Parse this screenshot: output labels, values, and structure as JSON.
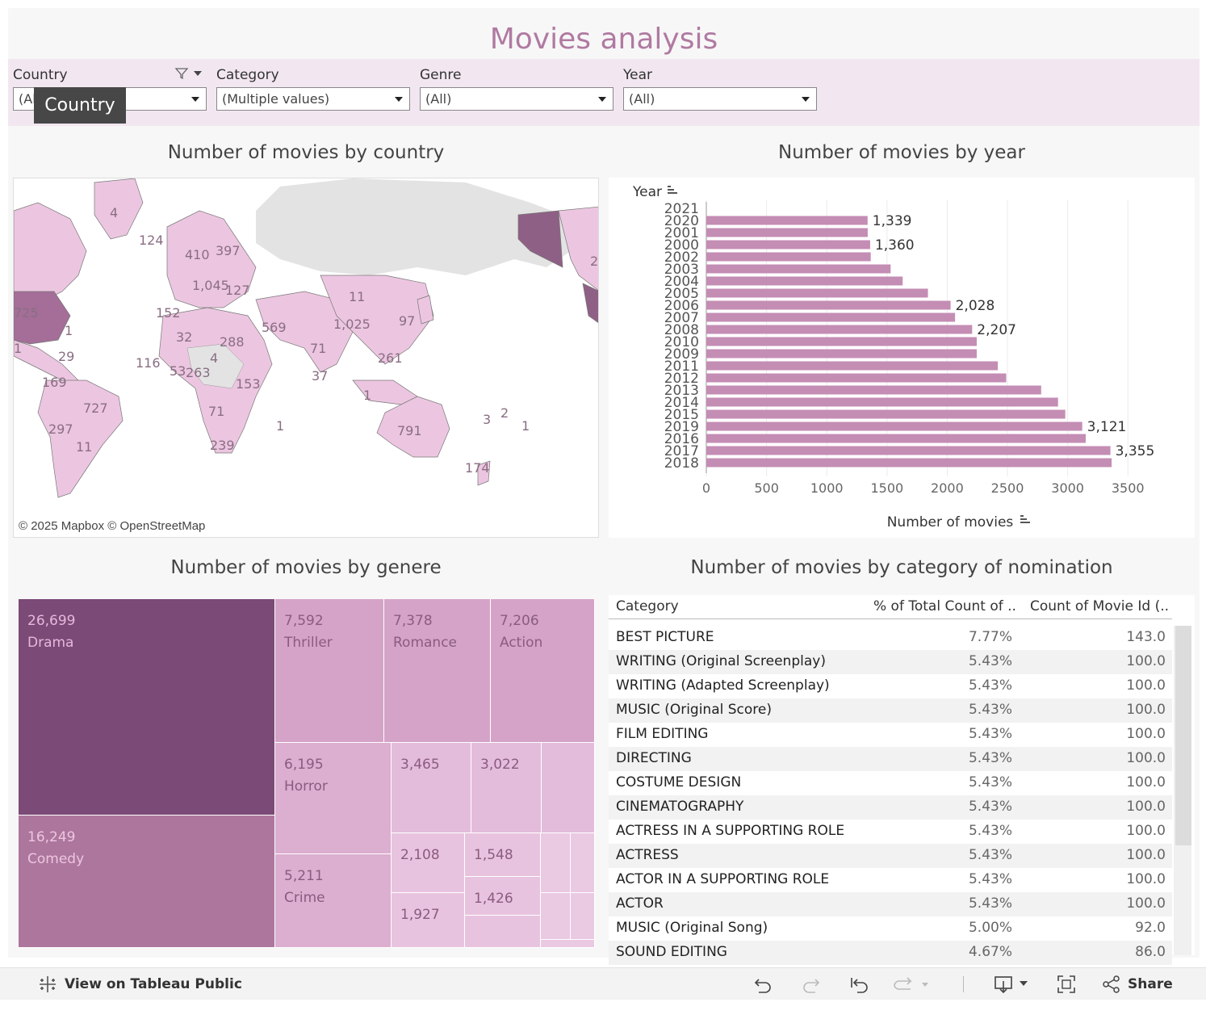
{
  "title": "Movies analysis",
  "filters": [
    {
      "label": "Country",
      "value": "(All"
    },
    {
      "label": "Category",
      "value": "(Multiple values)"
    },
    {
      "label": "Genre",
      "value": "(All)"
    },
    {
      "label": "Year",
      "value": "(All)"
    }
  ],
  "tooltip": "Country",
  "map": {
    "title": "Number of movies by country",
    "attribution": "© 2025 Mapbox  © OpenStreetMap",
    "labels": [
      "4",
      "124",
      "397",
      "410",
      "2",
      "725",
      "1",
      "1",
      "29",
      "152",
      "32",
      "288",
      "1,025",
      "11",
      "569",
      "1,045",
      "127",
      "97",
      "263",
      "261",
      "71",
      "37",
      "1",
      "116",
      "53",
      "4",
      "169",
      "727",
      "297",
      "11",
      "239",
      "71",
      "153",
      "791",
      "3",
      "2",
      "1",
      "174",
      "1"
    ]
  },
  "barchart": {
    "title": "Number of movies by year",
    "y_axis_label": "Year",
    "x_axis_label": "Number of movies",
    "accent": "#c48db4"
  },
  "chart_data": {
    "type": "bar",
    "orientation": "horizontal",
    "categories": [
      "2021",
      "2020",
      "2001",
      "2000",
      "2002",
      "2003",
      "2004",
      "2005",
      "2006",
      "2007",
      "2008",
      "2010",
      "2009",
      "2011",
      "2012",
      "2013",
      "2014",
      "2015",
      "2019",
      "2016",
      "2017",
      "2018"
    ],
    "values": [
      0,
      1339,
      1340,
      1360,
      1365,
      1530,
      1630,
      1840,
      2028,
      2065,
      2207,
      2245,
      2245,
      2420,
      2490,
      2780,
      2920,
      2980,
      3121,
      3150,
      3355,
      3365
    ],
    "data_labels": {
      "2020": "1,339",
      "2000": "1,360",
      "2006": "2,028",
      "2008": "2,207",
      "2019": "3,121",
      "2017": "3,355"
    },
    "xticks": [
      "0",
      "500",
      "1000",
      "1500",
      "2000",
      "2500",
      "3000",
      "3500"
    ],
    "xlim": [
      0,
      3800
    ],
    "xlabel": "Number of movies",
    "ylabel": "Year"
  },
  "treemap": {
    "title": "Number of movies by genere",
    "cells": [
      {
        "value": "26,699",
        "label": "Drama",
        "color": "#7b4a77",
        "text": "#e6b8dc"
      },
      {
        "value": "16,249",
        "label": "Comedy",
        "color": "#ad769d",
        "text": "#ecc6e0"
      },
      {
        "value": "7,592",
        "label": "Thriller",
        "color": "#d4a3c7",
        "text": "#8a5b80"
      },
      {
        "value": "7,378",
        "label": "Romance",
        "color": "#d4a3c7",
        "text": "#8a5b80"
      },
      {
        "value": "7,206",
        "label": "Action",
        "color": "#d4a3c7",
        "text": "#8a5b80"
      },
      {
        "value": "6,195",
        "label": "Horror",
        "color": "#dcaed0",
        "text": "#8a5b80"
      },
      {
        "value": "5,211",
        "label": "Crime",
        "color": "#dcaed0",
        "text": "#8a5b80"
      },
      {
        "value": "3,465",
        "label": "",
        "color": "#e4bcdb",
        "text": "#8a5b80"
      },
      {
        "value": "3,022",
        "label": "",
        "color": "#e4bcdb",
        "text": "#8a5b80"
      },
      {
        "value": "2,108",
        "label": "",
        "color": "#e8c3df",
        "text": "#8a5b80"
      },
      {
        "value": "1,548",
        "label": "",
        "color": "#e8c3df",
        "text": "#8a5b80"
      },
      {
        "value": "1,927",
        "label": "",
        "color": "#e8c3df",
        "text": "#8a5b80"
      },
      {
        "value": "1,426",
        "label": "",
        "color": "#e8c3df",
        "text": "#8a5b80"
      }
    ]
  },
  "table": {
    "title": "Number of movies by category of nomination",
    "headers": [
      "Category",
      "% of Total Count of ..",
      "Count of Movie Id (.."
    ],
    "rows": [
      [
        "BEST PICTURE",
        "7.77%",
        "143.0"
      ],
      [
        "WRITING (Original Screenplay)",
        "5.43%",
        "100.0"
      ],
      [
        "WRITING (Adapted Screenplay)",
        "5.43%",
        "100.0"
      ],
      [
        "MUSIC (Original Score)",
        "5.43%",
        "100.0"
      ],
      [
        "FILM EDITING",
        "5.43%",
        "100.0"
      ],
      [
        "DIRECTING",
        "5.43%",
        "100.0"
      ],
      [
        "COSTUME DESIGN",
        "5.43%",
        "100.0"
      ],
      [
        "CINEMATOGRAPHY",
        "5.43%",
        "100.0"
      ],
      [
        "ACTRESS IN A SUPPORTING ROLE",
        "5.43%",
        "100.0"
      ],
      [
        "ACTRESS",
        "5.43%",
        "100.0"
      ],
      [
        "ACTOR IN A SUPPORTING ROLE",
        "5.43%",
        "100.0"
      ],
      [
        "ACTOR",
        "5.43%",
        "100.0"
      ],
      [
        "MUSIC (Original Song)",
        "5.00%",
        "92.0"
      ],
      [
        "SOUND EDITING",
        "4.67%",
        "86.0"
      ]
    ]
  },
  "toolbar": {
    "view_label": "View on Tableau Public",
    "share_label": "Share",
    "icons": [
      "tableau-logo-icon",
      "undo-icon",
      "redo-icon",
      "revert-icon",
      "refresh-icon",
      "download-icon",
      "fullscreen-icon",
      "share-icon"
    ]
  }
}
